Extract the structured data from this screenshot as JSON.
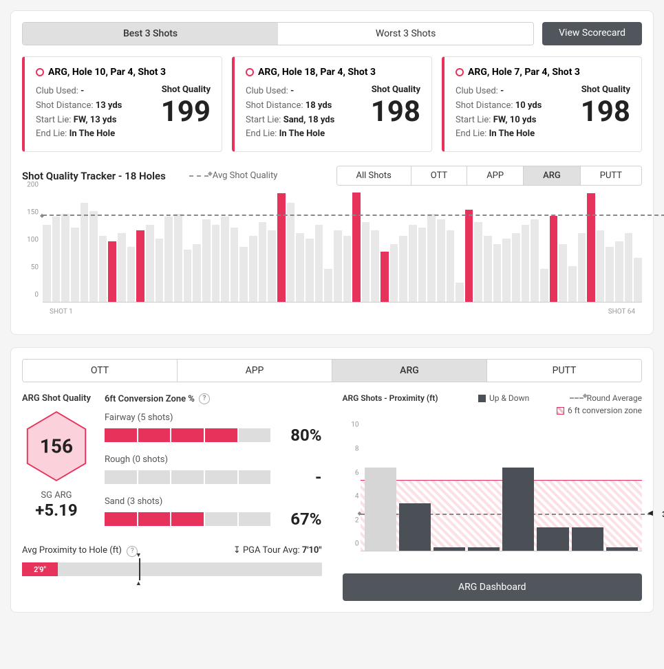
{
  "top_tabs": {
    "best": "Best 3 Shots",
    "worst": "Worst 3 Shots",
    "active": "best"
  },
  "view_scorecard": "View Scorecard",
  "cards": [
    {
      "title": "ARG, Hole 10, Par 4, Shot 3",
      "club": "-",
      "dist": "13 yds",
      "start": "FW, 13 yds",
      "end": "In The Hole",
      "quality": "199"
    },
    {
      "title": "ARG, Hole 18, Par 4, Shot 3",
      "club": "-",
      "dist": "18 yds",
      "start": "Sand, 18 yds",
      "end": "In The Hole",
      "quality": "198"
    },
    {
      "title": "ARG, Hole 7, Par 4, Shot 3",
      "club": "-",
      "dist": "10 yds",
      "start": "FW, 10 yds",
      "end": "In The Hole",
      "quality": "198"
    }
  ],
  "card_labels": {
    "club": "Club Used: ",
    "dist": "Shot Distance: ",
    "start": "Start Lie: ",
    "end": "End Lie: ",
    "quality": "Shot Quality"
  },
  "tracker": {
    "title": "Shot Quality Tracker - 18 Holes",
    "avg_label": "Avg Shot Quality",
    "filters": [
      "All Shots",
      "OTT",
      "APP",
      "ARG",
      "PUTT"
    ],
    "active_filter": "ARG",
    "ylim": [
      0,
      200
    ],
    "yticks": [
      0,
      50,
      100,
      150,
      200
    ],
    "avg": 156,
    "x_start": "SHOT 1",
    "x_end": "SHOT 64",
    "bars": [
      {
        "v": 140,
        "hi": false
      },
      {
        "v": 155,
        "hi": false
      },
      {
        "v": 160,
        "hi": false
      },
      {
        "v": 135,
        "hi": false
      },
      {
        "v": 180,
        "hi": false
      },
      {
        "v": 165,
        "hi": false
      },
      {
        "v": 120,
        "hi": false
      },
      {
        "v": 110,
        "hi": true
      },
      {
        "v": 125,
        "hi": false
      },
      {
        "v": 100,
        "hi": false
      },
      {
        "v": 130,
        "hi": true
      },
      {
        "v": 140,
        "hi": false
      },
      {
        "v": 115,
        "hi": false
      },
      {
        "v": 155,
        "hi": false
      },
      {
        "v": 160,
        "hi": false
      },
      {
        "v": 95,
        "hi": false
      },
      {
        "v": 105,
        "hi": false
      },
      {
        "v": 150,
        "hi": false
      },
      {
        "v": 140,
        "hi": false
      },
      {
        "v": 155,
        "hi": false
      },
      {
        "v": 135,
        "hi": false
      },
      {
        "v": 100,
        "hi": false
      },
      {
        "v": 120,
        "hi": false
      },
      {
        "v": 145,
        "hi": false
      },
      {
        "v": 130,
        "hi": false
      },
      {
        "v": 198,
        "hi": true
      },
      {
        "v": 180,
        "hi": false
      },
      {
        "v": 125,
        "hi": false
      },
      {
        "v": 115,
        "hi": false
      },
      {
        "v": 140,
        "hi": false
      },
      {
        "v": 60,
        "hi": false
      },
      {
        "v": 130,
        "hi": false
      },
      {
        "v": 120,
        "hi": false
      },
      {
        "v": 199,
        "hi": true
      },
      {
        "v": 145,
        "hi": false
      },
      {
        "v": 130,
        "hi": false
      },
      {
        "v": 92,
        "hi": true
      },
      {
        "v": 105,
        "hi": false
      },
      {
        "v": 120,
        "hi": false
      },
      {
        "v": 140,
        "hi": false
      },
      {
        "v": 135,
        "hi": false
      },
      {
        "v": 160,
        "hi": false
      },
      {
        "v": 150,
        "hi": false
      },
      {
        "v": 130,
        "hi": false
      },
      {
        "v": 35,
        "hi": false
      },
      {
        "v": 168,
        "hi": true
      },
      {
        "v": 145,
        "hi": false
      },
      {
        "v": 120,
        "hi": false
      },
      {
        "v": 105,
        "hi": false
      },
      {
        "v": 115,
        "hi": false
      },
      {
        "v": 125,
        "hi": false
      },
      {
        "v": 140,
        "hi": false
      },
      {
        "v": 150,
        "hi": false
      },
      {
        "v": 60,
        "hi": false
      },
      {
        "v": 156,
        "hi": true
      },
      {
        "v": 105,
        "hi": false
      },
      {
        "v": 65,
        "hi": false
      },
      {
        "v": 125,
        "hi": false
      },
      {
        "v": 198,
        "hi": true
      },
      {
        "v": 130,
        "hi": false
      },
      {
        "v": 100,
        "hi": false
      },
      {
        "v": 110,
        "hi": false
      },
      {
        "v": 125,
        "hi": false
      },
      {
        "v": 80,
        "hi": false
      }
    ]
  },
  "sub_tabs": {
    "items": [
      "OTT",
      "APP",
      "ARG",
      "PUTT"
    ],
    "active": "ARG"
  },
  "hex": {
    "label": "ARG Shot Quality",
    "value": "156",
    "sg_label": "SG ARG",
    "sg_value": "+5.19",
    "stroke": "#e7335c",
    "fill": "#fbd2dc"
  },
  "conversion": {
    "title": "6ft Conversion Zone %",
    "items": [
      {
        "label": "Fairway (5 shots)",
        "segments": 5,
        "filled": 4,
        "pct": "80%"
      },
      {
        "label": "Rough (0 shots)",
        "segments": 5,
        "filled": 0,
        "pct": "-"
      },
      {
        "label": "Sand (3 shots)",
        "segments": 5,
        "filled": 3,
        "pct": "67%"
      }
    ]
  },
  "proximity": {
    "label": "Avg Proximity to Hole (ft)",
    "pga_label": "PGA Tour Avg: ",
    "pga_val": "7'10\"",
    "value": "2'9\"",
    "fill_pct": 12,
    "mark_pct": 39
  },
  "prox_chart": {
    "title": "ARG Shots - Proximity (ft)",
    "legend_updown": "Up & Down",
    "legend_round": "Round Average",
    "legend_zone": "6 ft conversion zone",
    "ylim": [
      0,
      11
    ],
    "yticks": [
      0,
      2,
      4,
      6,
      8,
      10
    ],
    "zone_top": 6,
    "avg": 3,
    "bars": [
      {
        "v": 7,
        "up": false
      },
      {
        "v": 4,
        "up": true
      },
      {
        "v": 0.3,
        "up": true
      },
      {
        "v": 0.3,
        "up": true
      },
      {
        "v": 7,
        "up": true
      },
      {
        "v": 2,
        "up": true
      },
      {
        "v": 2,
        "up": true
      },
      {
        "v": 0.3,
        "up": true
      }
    ],
    "button": "ARG Dashboard"
  },
  "colors": {
    "accent": "#e7335c",
    "dark": "#4a5056",
    "grey_bar": "#e8e8e8",
    "grey_seg": "#ddd"
  }
}
